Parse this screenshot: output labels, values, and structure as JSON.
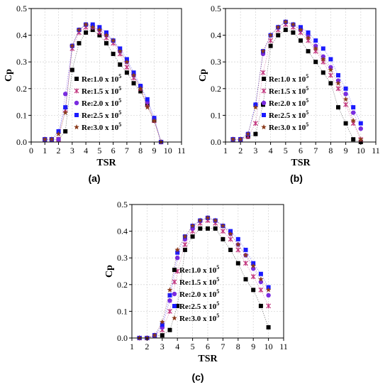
{
  "series_styles": [
    {
      "name": "Re:1.0 x 10",
      "exp": "5",
      "color": "#000000",
      "marker": "square"
    },
    {
      "name": "Re:1.5 x 10",
      "exp": "5",
      "color": "#c0307a",
      "marker": "cross"
    },
    {
      "name": "Re:2.0 x 10",
      "exp": "5",
      "color": "#7a2be0",
      "marker": "circle"
    },
    {
      "name": "Re:2.5 x 10",
      "exp": "5",
      "color": "#1a1aff",
      "marker": "square"
    },
    {
      "name": "Re:3.0 x 10",
      "exp": "5",
      "color": "#8b3a1a",
      "marker": "star"
    }
  ],
  "chart_data": [
    {
      "type": "scatter",
      "panel_label": "(a)",
      "xlabel": "TSR",
      "ylabel": "Cp",
      "xlim": [
        0,
        11
      ],
      "ylim": [
        0,
        0.5
      ],
      "xticks": [
        0,
        1,
        2,
        3,
        4,
        5,
        6,
        7,
        8,
        9,
        10,
        11
      ],
      "yticks": [
        0.0,
        0.1,
        0.2,
        0.3,
        0.4,
        0.5
      ],
      "grid": true,
      "legend_position": "center-left",
      "series": [
        {
          "name": "Re:1.0 x 10^5",
          "x": [
            1,
            1.5,
            2,
            2.5,
            3,
            3.5,
            4,
            4.5,
            5,
            5.5,
            6,
            6.5,
            7,
            7.5,
            8,
            8.5,
            9,
            9.5
          ],
          "y": [
            0.01,
            0.01,
            0.01,
            0.04,
            0.27,
            0.37,
            0.41,
            0.42,
            0.4,
            0.37,
            0.33,
            0.29,
            0.26,
            0.22,
            0.19,
            0.14,
            0.08,
            0.0
          ]
        },
        {
          "name": "Re:1.5 x 10^5",
          "x": [
            1,
            1.5,
            2,
            2.5,
            3,
            3.5,
            4,
            4.5,
            5,
            5.5,
            6,
            6.5,
            7,
            7.5,
            8,
            8.5,
            9,
            9.5
          ],
          "y": [
            0.01,
            0.01,
            0.01,
            0.12,
            0.35,
            0.41,
            0.43,
            0.43,
            0.41,
            0.39,
            0.37,
            0.33,
            0.28,
            0.24,
            0.2,
            0.14,
            0.08,
            0.0
          ]
        },
        {
          "name": "Re:2.0 x 10^5",
          "x": [
            1,
            1.5,
            2,
            2.5,
            3,
            3.5,
            4,
            4.5,
            5,
            5.5,
            6,
            6.5,
            7,
            7.5,
            8,
            8.5,
            9,
            9.5
          ],
          "y": [
            0.01,
            0.01,
            0.01,
            0.18,
            0.36,
            0.42,
            0.44,
            0.43,
            0.42,
            0.4,
            0.38,
            0.34,
            0.3,
            0.25,
            0.21,
            0.15,
            0.09,
            0.0
          ]
        },
        {
          "name": "Re:2.5 x 10^5",
          "x": [
            1,
            1.5,
            2,
            2.5,
            3,
            3.5,
            4,
            4.5,
            5,
            5.5,
            6,
            6.5,
            7,
            7.5,
            8,
            8.5,
            9,
            9.5
          ],
          "y": [
            0.01,
            0.01,
            0.04,
            0.13,
            0.36,
            0.42,
            0.44,
            0.44,
            0.43,
            0.41,
            0.38,
            0.35,
            0.31,
            0.26,
            0.21,
            0.16,
            0.09,
            0.0
          ]
        },
        {
          "name": "Re:3.0 x 10^5",
          "x": [
            1,
            1.5,
            2,
            2.5,
            3,
            3.5,
            4,
            4.5,
            5,
            5.5,
            6,
            6.5,
            7,
            7.5,
            8,
            8.5,
            9,
            9.5
          ],
          "y": [
            0.01,
            0.01,
            0.03,
            0.11,
            0.36,
            0.42,
            0.44,
            0.43,
            0.42,
            0.4,
            0.38,
            0.34,
            0.3,
            0.25,
            0.2,
            0.13,
            0.08,
            0.0
          ]
        }
      ]
    },
    {
      "type": "scatter",
      "panel_label": "(b)",
      "xlabel": "TSR",
      "ylabel": "Cp",
      "xlim": [
        1,
        11
      ],
      "ylim": [
        0,
        0.5
      ],
      "xticks": [
        1,
        2,
        3,
        4,
        5,
        6,
        7,
        8,
        9,
        10,
        11
      ],
      "yticks": [
        0.0,
        0.1,
        0.2,
        0.3,
        0.4,
        0.5
      ],
      "grid": true,
      "legend_position": "center-right",
      "series": [
        {
          "name": "Re:1.0 x 10^5",
          "x": [
            1.5,
            2,
            2.5,
            3,
            3.5,
            4,
            4.5,
            5,
            5.5,
            6,
            6.5,
            7,
            7.5,
            8,
            8.5,
            9,
            9.5,
            10
          ],
          "y": [
            0.01,
            0.01,
            0.02,
            0.03,
            0.14,
            0.36,
            0.4,
            0.42,
            0.41,
            0.38,
            0.34,
            0.3,
            0.26,
            0.22,
            0.13,
            0.07,
            0.01,
            0.0
          ]
        },
        {
          "name": "Re:1.5 x 10^5",
          "x": [
            1.5,
            2,
            2.5,
            3,
            3.5,
            4,
            4.5,
            5,
            5.5,
            6,
            6.5,
            7,
            7.5,
            8,
            8.5,
            9,
            9.5,
            10
          ],
          "y": [
            0.01,
            0.01,
            0.02,
            0.07,
            0.26,
            0.38,
            0.42,
            0.44,
            0.43,
            0.41,
            0.38,
            0.34,
            0.3,
            0.25,
            0.2,
            0.14,
            0.07,
            0.01
          ]
        },
        {
          "name": "Re:2.0 x 10^5",
          "x": [
            1.5,
            2,
            2.5,
            3,
            3.5,
            4,
            4.5,
            5,
            5.5,
            6,
            6.5,
            7,
            7.5,
            8,
            8.5,
            9,
            9.5,
            10
          ],
          "y": [
            0.01,
            0.01,
            0.03,
            0.14,
            0.33,
            0.4,
            0.43,
            0.45,
            0.44,
            0.42,
            0.4,
            0.36,
            0.32,
            0.28,
            0.23,
            0.18,
            0.11,
            0.05
          ]
        },
        {
          "name": "Re:2.5 x 10^5",
          "x": [
            1.5,
            2,
            2.5,
            3,
            3.5,
            4,
            4.5,
            5,
            5.5,
            6,
            6.5,
            7,
            7.5,
            8,
            8.5,
            9,
            9.5,
            10
          ],
          "y": [
            0.01,
            0.01,
            0.03,
            0.14,
            0.34,
            0.4,
            0.43,
            0.45,
            0.44,
            0.43,
            0.41,
            0.38,
            0.35,
            0.31,
            0.25,
            0.2,
            0.13,
            0.07
          ]
        },
        {
          "name": "Re:3.0 x 10^5",
          "x": [
            1.5,
            2,
            2.5,
            3,
            3.5,
            4,
            4.5,
            5,
            5.5,
            6,
            6.5,
            7,
            7.5,
            8,
            8.5,
            9,
            9.5,
            10
          ],
          "y": [
            0.01,
            0.01,
            0.03,
            0.13,
            0.34,
            0.4,
            0.43,
            0.45,
            0.44,
            0.42,
            0.39,
            0.35,
            0.31,
            0.27,
            0.22,
            0.16,
            0.08,
            0.01
          ]
        }
      ]
    },
    {
      "type": "scatter",
      "panel_label": "(c)",
      "xlabel": "TSR",
      "ylabel": "Cp",
      "xlim": [
        1,
        11
      ],
      "ylim": [
        0,
        0.5
      ],
      "xticks": [
        1,
        2,
        3,
        4,
        5,
        6,
        7,
        8,
        9,
        10,
        11
      ],
      "yticks": [
        0.0,
        0.1,
        0.2,
        0.3,
        0.4,
        0.5
      ],
      "grid": true,
      "legend_position": "center-right",
      "series": [
        {
          "name": "Re:1.0 x 10^5",
          "x": [
            1.5,
            2,
            2.5,
            3,
            3.5,
            4,
            4.5,
            5,
            5.5,
            6,
            6.5,
            7,
            7.5,
            8,
            8.5,
            9,
            9.5,
            10
          ],
          "y": [
            0.0,
            0.0,
            0.01,
            0.01,
            0.03,
            0.12,
            0.33,
            0.38,
            0.41,
            0.41,
            0.41,
            0.37,
            0.33,
            0.28,
            0.22,
            0.18,
            0.12,
            0.04
          ]
        },
        {
          "name": "Re:1.5 x 10^5",
          "x": [
            1.5,
            2,
            2.5,
            3,
            3.5,
            4,
            4.5,
            5,
            5.5,
            6,
            6.5,
            7,
            7.5,
            8,
            8.5,
            9,
            9.5,
            10
          ],
          "y": [
            0.0,
            0.0,
            0.01,
            0.03,
            0.1,
            0.25,
            0.35,
            0.4,
            0.43,
            0.44,
            0.43,
            0.4,
            0.37,
            0.33,
            0.28,
            0.23,
            0.18,
            0.12
          ]
        },
        {
          "name": "Re:2.0 x 10^5",
          "x": [
            1.5,
            2,
            2.5,
            3,
            3.5,
            4,
            4.5,
            5,
            5.5,
            6,
            6.5,
            7,
            7.5,
            8,
            8.5,
            9,
            9.5,
            10
          ],
          "y": [
            0.0,
            0.0,
            0.01,
            0.04,
            0.14,
            0.3,
            0.37,
            0.41,
            0.44,
            0.45,
            0.44,
            0.42,
            0.39,
            0.35,
            0.31,
            0.26,
            0.21,
            0.16
          ]
        },
        {
          "name": "Re:2.5 x 10^5",
          "x": [
            1.5,
            2,
            2.5,
            3,
            3.5,
            4,
            4.5,
            5,
            5.5,
            6,
            6.5,
            7,
            7.5,
            8,
            8.5,
            9,
            9.5,
            10
          ],
          "y": [
            0.0,
            0.0,
            0.01,
            0.05,
            0.16,
            0.32,
            0.38,
            0.42,
            0.44,
            0.45,
            0.44,
            0.42,
            0.4,
            0.37,
            0.33,
            0.28,
            0.24,
            0.19
          ]
        },
        {
          "name": "Re:3.0 x 10^5",
          "x": [
            1.5,
            2,
            2.5,
            3,
            3.5,
            4,
            4.5,
            5,
            5.5,
            6,
            6.5,
            7,
            7.5,
            8,
            8.5,
            9,
            9.5,
            10
          ],
          "y": [
            0.0,
            0.0,
            0.01,
            0.06,
            0.18,
            0.33,
            0.38,
            0.42,
            0.44,
            0.45,
            0.44,
            0.42,
            0.39,
            0.35,
            0.31,
            0.27,
            0.22,
            0.18
          ]
        }
      ]
    }
  ]
}
